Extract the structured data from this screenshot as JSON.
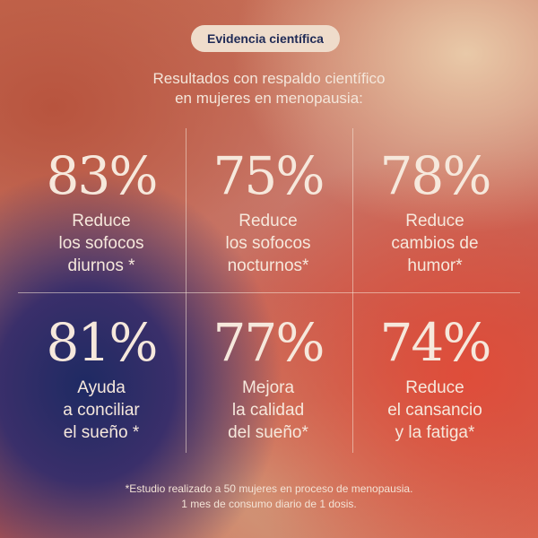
{
  "badge": "Evidencia científica",
  "intro": [
    "Resultados con respaldo científico",
    "en mujeres en menopausia:"
  ],
  "stats": [
    {
      "percent": "83%",
      "lines": [
        "Reduce",
        "los sofocos",
        "diurnos *"
      ]
    },
    {
      "percent": "75%",
      "lines": [
        "Reduce",
        "los sofocos",
        "nocturnos*"
      ]
    },
    {
      "percent": "78%",
      "lines": [
        "Reduce",
        "cambios de",
        "humor*"
      ]
    },
    {
      "percent": "81%",
      "lines": [
        "Ayuda",
        "a conciliar",
        "el sueño *"
      ]
    },
    {
      "percent": "77%",
      "lines": [
        "Mejora",
        "la calidad",
        "del sueño*"
      ]
    },
    {
      "percent": "74%",
      "lines": [
        "Reduce",
        "el cansancio",
        "y la fatiga*"
      ]
    }
  ],
  "footnote": [
    "*Estudio realizado a 50 mujeres en proceso de menopausia.",
    "1 mes de consumo diario de 1 dosis."
  ],
  "colors": {
    "badge_bg": "#efdccb",
    "badge_text": "#1f2a56",
    "text": "#f6e8dc"
  }
}
